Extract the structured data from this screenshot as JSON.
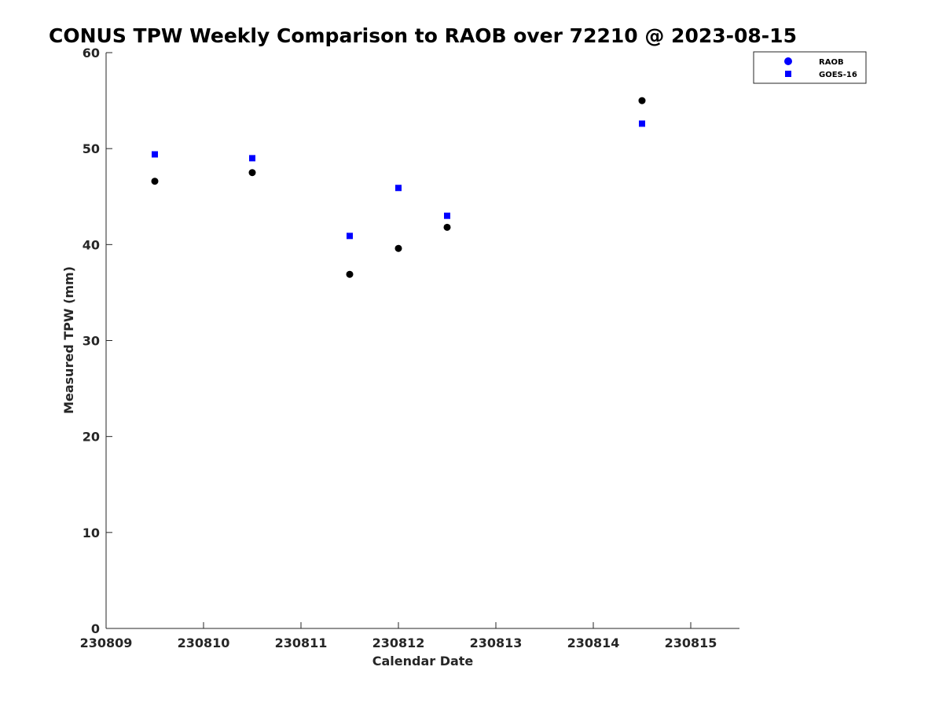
{
  "chart_data": {
    "type": "scatter",
    "title": "CONUS TPW Weekly Comparison to RAOB over 72210 @ 2023-08-15",
    "xlabel": "Calendar Date",
    "ylabel": "Measured TPW (mm)",
    "xlim": [
      0,
      6.5
    ],
    "ylim": [
      0,
      60
    ],
    "x_ticks": [
      {
        "value": 0,
        "label": "230809"
      },
      {
        "value": 1,
        "label": "230810"
      },
      {
        "value": 2,
        "label": "230811"
      },
      {
        "value": 3,
        "label": "230812"
      },
      {
        "value": 4,
        "label": "230813"
      },
      {
        "value": 5,
        "label": "230814"
      },
      {
        "value": 6,
        "label": "230815"
      }
    ],
    "y_ticks": [
      {
        "value": 0,
        "label": "0"
      },
      {
        "value": 10,
        "label": "10"
      },
      {
        "value": 20,
        "label": "20"
      },
      {
        "value": 30,
        "label": "30"
      },
      {
        "value": 40,
        "label": "40"
      },
      {
        "value": 50,
        "label": "50"
      },
      {
        "value": 60,
        "label": "60"
      }
    ],
    "grid": false,
    "legend_position": "top-right",
    "series": [
      {
        "name": "RAOB",
        "marker": "circle",
        "legend_color": "#0000ff",
        "point_color": "#000000",
        "points": [
          {
            "x": 0.5,
            "y": 46.6
          },
          {
            "x": 1.5,
            "y": 47.5
          },
          {
            "x": 2.5,
            "y": 36.9
          },
          {
            "x": 3.0,
            "y": 39.6
          },
          {
            "x": 3.5,
            "y": 41.8
          },
          {
            "x": 5.5,
            "y": 55.0
          }
        ]
      },
      {
        "name": "GOES-16",
        "marker": "square",
        "legend_color": "#0000ff",
        "point_color": "#0000ff",
        "points": [
          {
            "x": 0.5,
            "y": 49.4
          },
          {
            "x": 1.5,
            "y": 49.0
          },
          {
            "x": 2.5,
            "y": 40.9
          },
          {
            "x": 3.0,
            "y": 45.9
          },
          {
            "x": 3.5,
            "y": 43.0
          },
          {
            "x": 5.5,
            "y": 52.6
          }
        ]
      }
    ]
  }
}
